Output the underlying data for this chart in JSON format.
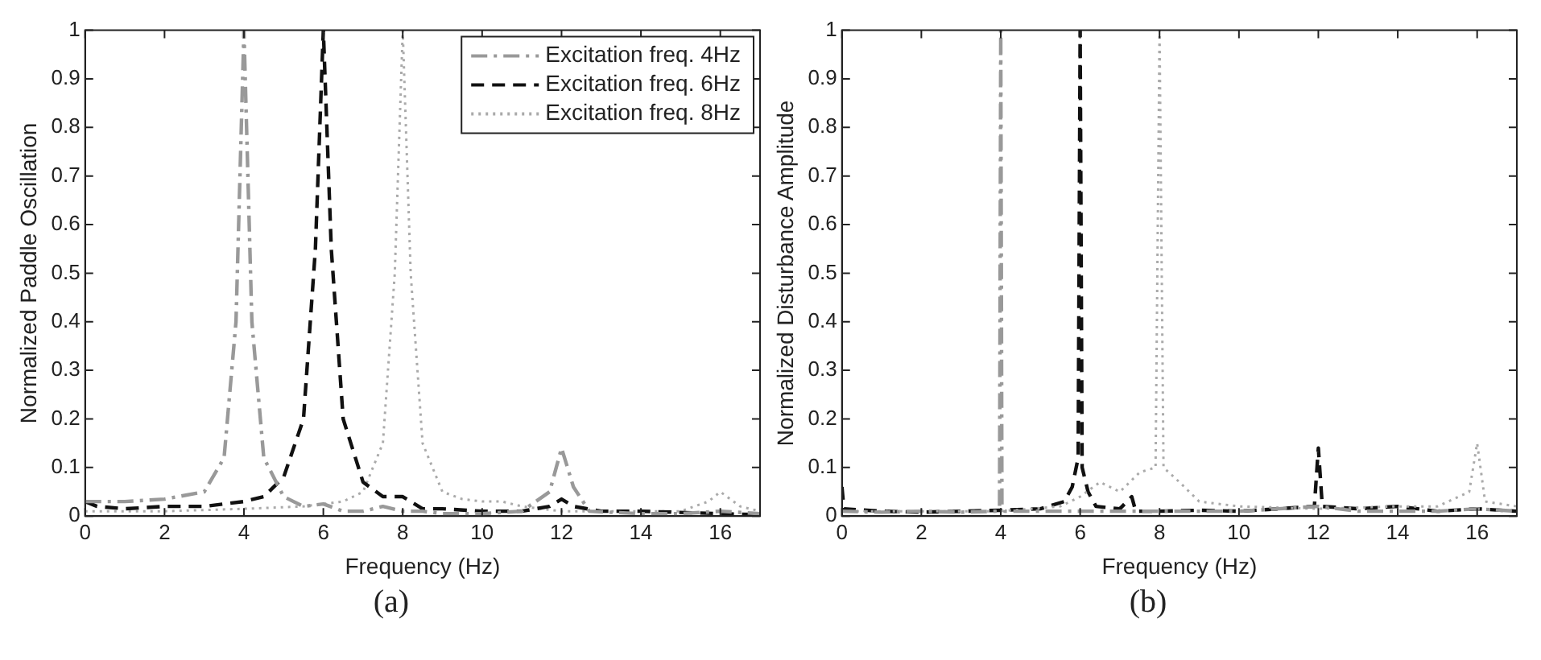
{
  "chart_data": [
    {
      "type": "line",
      "xlabel": "Frequency (Hz)",
      "ylabel": "Normalized Paddle Oscillation",
      "annotations": [
        "(a)"
      ],
      "xlim": [
        0,
        17
      ],
      "ylim": [
        0,
        1
      ],
      "xticks": [
        0,
        2,
        4,
        6,
        8,
        10,
        12,
        14,
        16
      ],
      "yticks": [
        0,
        0.1,
        0.2,
        0.3,
        0.4,
        0.5,
        0.6,
        0.7,
        0.8,
        0.9,
        1
      ],
      "grid": false,
      "legend": "top right",
      "series": [
        {
          "name": "Excitation freq. 4Hz",
          "color": "#999999",
          "line_style": "dashdot",
          "x": [
            0,
            1,
            2,
            3,
            3.5,
            3.8,
            4,
            4.2,
            4.5,
            5,
            5.5,
            6,
            6.5,
            7,
            7.5,
            8,
            8.5,
            9,
            10,
            11,
            11.7,
            12,
            12.3,
            12.7,
            14,
            15,
            16,
            17
          ],
          "values": [
            0.03,
            0.03,
            0.035,
            0.05,
            0.12,
            0.4,
            1,
            0.4,
            0.12,
            0.04,
            0.02,
            0.025,
            0.01,
            0.01,
            0.02,
            0.01,
            0.01,
            0.005,
            0.005,
            0.01,
            0.05,
            0.14,
            0.06,
            0.01,
            0.005,
            0.005,
            0.01,
            0.005
          ]
        },
        {
          "name": "Excitation freq. 6Hz",
          "color": "#111111",
          "line_style": "dashed",
          "x": [
            0,
            0.3,
            1,
            2,
            3,
            4,
            4.5,
            5,
            5.5,
            5.8,
            6,
            6.2,
            6.5,
            7,
            7.5,
            8,
            8.5,
            9,
            10,
            11,
            11.7,
            12,
            12.3,
            13,
            14,
            16,
            17
          ],
          "values": [
            0.03,
            0.02,
            0.015,
            0.02,
            0.02,
            0.03,
            0.04,
            0.08,
            0.2,
            0.55,
            1,
            0.55,
            0.2,
            0.07,
            0.04,
            0.04,
            0.015,
            0.015,
            0.01,
            0.01,
            0.02,
            0.035,
            0.02,
            0.01,
            0.01,
            0.005,
            0.003
          ]
        },
        {
          "name": "Excitation freq. 8Hz",
          "color": "#aaaaaa",
          "line_style": "dotted",
          "x": [
            0,
            2,
            4,
            5.5,
            6.5,
            7,
            7.5,
            7.8,
            8,
            8.2,
            8.5,
            9,
            9.5,
            10,
            10.5,
            11,
            12,
            13,
            14,
            15,
            15.7,
            16,
            16.5,
            17
          ],
          "values": [
            0.01,
            0.01,
            0.015,
            0.02,
            0.03,
            0.05,
            0.15,
            0.5,
            1,
            0.5,
            0.15,
            0.05,
            0.035,
            0.03,
            0.03,
            0.02,
            0.01,
            0.01,
            0.01,
            0.01,
            0.03,
            0.05,
            0.02,
            0.01
          ]
        }
      ]
    },
    {
      "type": "line",
      "xlabel": "Frequency (Hz)",
      "ylabel": "Normalized Disturbance Amplitude",
      "annotations": [
        "(b)"
      ],
      "xlim": [
        0,
        17
      ],
      "ylim": [
        0,
        1
      ],
      "xticks": [
        0,
        2,
        4,
        6,
        8,
        10,
        12,
        14,
        16
      ],
      "yticks": [
        0,
        0.1,
        0.2,
        0.3,
        0.4,
        0.5,
        0.6,
        0.7,
        0.8,
        0.9,
        1
      ],
      "grid": false,
      "series": [
        {
          "color": "#999999",
          "line_style": "dashdot",
          "x": [
            0,
            1,
            2,
            3,
            3.9,
            3.97,
            4,
            4.03,
            4.1,
            5,
            6,
            7,
            8,
            9,
            10,
            11,
            12,
            13,
            14,
            15,
            16,
            17
          ],
          "values": [
            0.01,
            0.008,
            0.01,
            0.008,
            0.01,
            0.02,
            1,
            0.02,
            0.01,
            0.01,
            0.01,
            0.01,
            0.01,
            0.01,
            0.01,
            0.015,
            0.02,
            0.01,
            0.01,
            0.01,
            0.015,
            0.01
          ]
        },
        {
          "color": "#aaaaaa",
          "line_style": "dotted",
          "x": [
            0,
            2,
            4,
            5.5,
            6,
            6.5,
            7,
            7.5,
            7.9,
            8,
            8.1,
            8.5,
            9,
            10,
            12,
            14,
            15,
            15.8,
            16,
            16.2,
            17
          ],
          "values": [
            0.01,
            0.01,
            0.01,
            0.02,
            0.04,
            0.07,
            0.05,
            0.09,
            0.1,
            1,
            0.1,
            0.07,
            0.03,
            0.02,
            0.015,
            0.02,
            0.02,
            0.05,
            0.15,
            0.03,
            0.02
          ]
        },
        {
          "color": "#111111",
          "line_style": "dashed",
          "x": [
            0,
            0.05,
            1,
            2,
            3,
            4,
            5,
            5.6,
            5.8,
            5.95,
            6,
            6.05,
            6.2,
            6.4,
            7,
            7.3,
            7.4,
            8,
            9,
            10,
            11,
            11.9,
            12,
            12.1,
            13,
            14,
            15,
            16,
            17
          ],
          "values": [
            0.06,
            0.015,
            0.01,
            0.008,
            0.01,
            0.012,
            0.015,
            0.03,
            0.06,
            0.12,
            1,
            0.1,
            0.05,
            0.02,
            0.015,
            0.04,
            0.01,
            0.01,
            0.012,
            0.01,
            0.015,
            0.02,
            0.14,
            0.02,
            0.015,
            0.02,
            0.01,
            0.015,
            0.01
          ]
        }
      ]
    }
  ]
}
